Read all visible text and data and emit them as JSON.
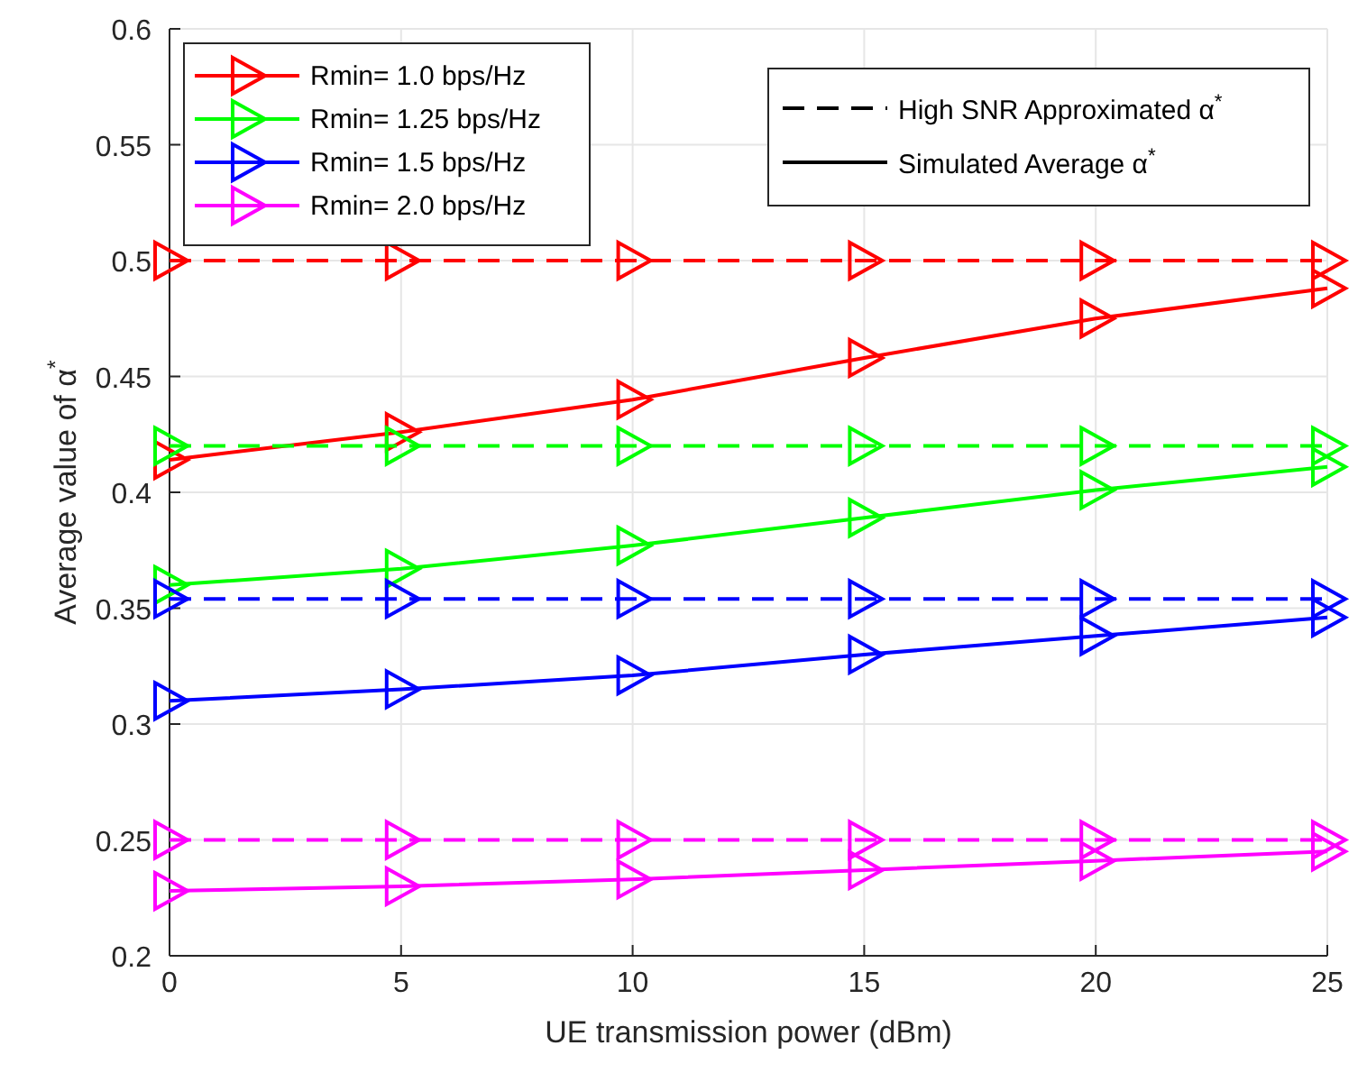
{
  "chart_data": {
    "type": "line",
    "xlabel": "UE transmission power (dBm)",
    "ylabel": "Average value of α$^{*}$",
    "x": [
      0,
      5,
      10,
      15,
      20,
      25
    ],
    "series": [
      {
        "name": "Rmin= 1.0 bps/Hz",
        "color": "#ff0000",
        "line_style": "solid",
        "values": [
          0.414,
          0.426,
          0.44,
          0.458,
          0.475,
          0.488
        ]
      },
      {
        "name": "Rmin= 1.25 bps/Hz",
        "color": "#00ff00",
        "line_style": "solid",
        "values": [
          0.36,
          0.367,
          0.377,
          0.389,
          0.401,
          0.411
        ]
      },
      {
        "name": "Rmin= 1.5 bps/Hz",
        "color": "#0000ff",
        "line_style": "solid",
        "values": [
          0.31,
          0.315,
          0.321,
          0.33,
          0.338,
          0.346
        ]
      },
      {
        "name": "Rmin= 2.0 bps/Hz",
        "color": "#ff00ff",
        "line_style": "solid",
        "values": [
          0.228,
          0.23,
          0.233,
          0.237,
          0.241,
          0.245
        ]
      },
      {
        "color": "#ff0000",
        "line_style": "dashed",
        "values": [
          0.5,
          0.5,
          0.5,
          0.5,
          0.5,
          0.5
        ]
      },
      {
        "color": "#00ff00",
        "line_style": "dashed",
        "values": [
          0.42,
          0.42,
          0.42,
          0.42,
          0.42,
          0.42
        ]
      },
      {
        "color": "#0000ff",
        "line_style": "dashed",
        "values": [
          0.354,
          0.354,
          0.354,
          0.354,
          0.354,
          0.354
        ]
      },
      {
        "color": "#ff00ff",
        "line_style": "dashed",
        "values": [
          0.25,
          0.25,
          0.25,
          0.25,
          0.25,
          0.25
        ]
      }
    ],
    "annotations": [
      "High SNR Approximated α$^{*}$",
      "Simulated Average α$^{*}$"
    ],
    "xlim": [
      0,
      25
    ],
    "xticks": [
      0,
      5,
      10,
      15,
      20,
      25
    ],
    "ylim": [
      0.2,
      0.6
    ],
    "yticks": [
      0.2,
      0.25,
      0.3,
      0.35,
      0.4,
      0.45,
      0.5,
      0.55,
      0.6
    ],
    "grid": true,
    "legend": "top left",
    "marker": "triangle"
  }
}
